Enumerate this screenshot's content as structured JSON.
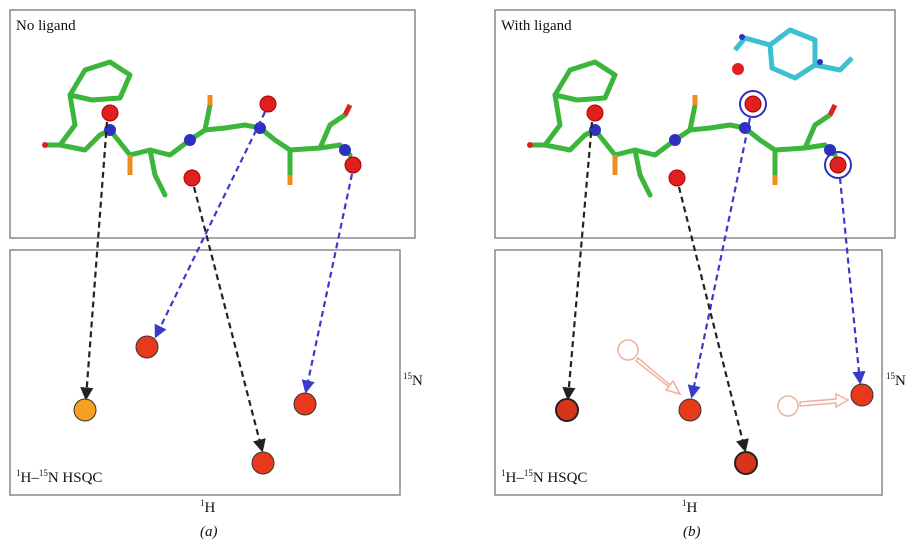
{
  "panels": [
    {
      "label": "(a)",
      "structure_title": "No ligand",
      "spectrum_title": {
        "parts": [
          "1",
          "H–",
          "15",
          "N HSQC"
        ]
      },
      "x_axis": {
        "parts": [
          "1",
          "H"
        ]
      },
      "y_axis": {
        "parts": [
          "15",
          "N"
        ]
      }
    },
    {
      "label": "(b)",
      "structure_title": "With ligand",
      "spectrum_title": {
        "parts": [
          "1",
          "H–",
          "15",
          "N HSQC"
        ]
      },
      "x_axis": {
        "parts": [
          "1",
          "H"
        ]
      },
      "y_axis": {
        "parts": [
          "15",
          "N"
        ]
      }
    }
  ]
}
